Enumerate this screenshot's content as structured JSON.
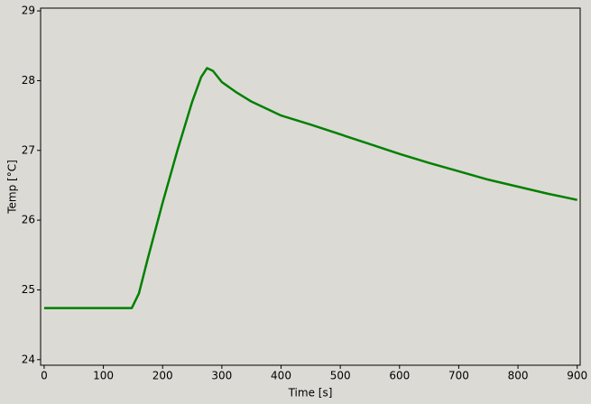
{
  "chart_data": {
    "type": "line",
    "x_label": "Time [s]",
    "y_label": "Temp [°C]",
    "x": [
      0,
      25,
      50,
      75,
      100,
      125,
      148,
      160,
      175,
      200,
      225,
      250,
      265,
      275,
      285,
      300,
      325,
      350,
      375,
      400,
      450,
      500,
      550,
      600,
      650,
      700,
      750,
      800,
      850,
      900
    ],
    "series": [
      {
        "color": "#008000",
        "values": [
          24.74,
          24.74,
          24.74,
          24.74,
          24.74,
          24.74,
          24.74,
          24.95,
          25.45,
          26.25,
          27.0,
          27.7,
          28.05,
          28.18,
          28.14,
          27.98,
          27.83,
          27.7,
          27.6,
          27.5,
          27.37,
          27.23,
          27.09,
          26.95,
          26.82,
          26.7,
          26.58,
          26.48,
          26.38,
          26.29
        ]
      }
    ],
    "xlim": [
      -6,
      905
    ],
    "ylim": [
      23.92,
      29.04
    ],
    "xticks": [
      0,
      100,
      200,
      300,
      400,
      500,
      600,
      700,
      800,
      900
    ],
    "yticks": [
      24,
      25,
      26,
      27,
      28,
      29
    ]
  }
}
